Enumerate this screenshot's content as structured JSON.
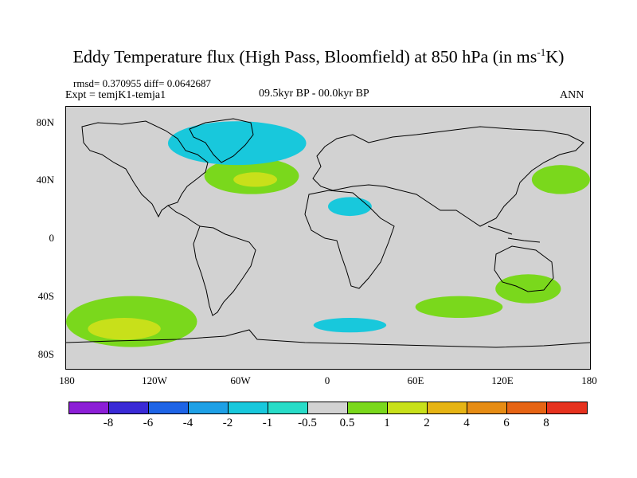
{
  "title": {
    "text_before": "Eddy Temperature flux (High Pass, Bloomfield) at 850 hPa (in ms",
    "sup": "-1",
    "text_after": "K)"
  },
  "header": {
    "stats": "rmsd= 0.370955 diff= 0.0642687",
    "expt": "Expt = temjK1-temja1",
    "period": "09.5kyr BP - 00.0kyr BP",
    "season": "ANN"
  },
  "axes": {
    "y_labels": [
      "80N",
      "40N",
      "0",
      "40S",
      "80S"
    ],
    "x_labels": [
      "180",
      "120W",
      "60W",
      "0",
      "60E",
      "120E",
      "180"
    ]
  },
  "colorbar": {
    "colors": [
      "#8c1ed6",
      "#3a2ad6",
      "#1e64e6",
      "#1ea0e6",
      "#18c8dc",
      "#28dcc8",
      "#d2d2d2",
      "#7ad81c",
      "#c8e01a",
      "#e6b414",
      "#e68c14",
      "#e66414",
      "#e6321e"
    ],
    "labels": [
      "-8",
      "-6",
      "-4",
      "-2",
      "-1",
      "-0.5",
      "0.5",
      "1",
      "2",
      "4",
      "6",
      "8"
    ]
  },
  "chart_data": {
    "type": "map",
    "projection": "cylindrical equidistant",
    "lon_range": [
      -180,
      180
    ],
    "lat_range": [
      -90,
      90
    ],
    "background_color": "#d2d2d2",
    "levels": [
      -8,
      -6,
      -4,
      -2,
      -1,
      -0.5,
      0.5,
      1,
      2,
      4,
      6,
      8
    ],
    "regions": [
      {
        "name": "north-atlantic-positive",
        "level": 1,
        "color": "#7ad81c",
        "lon": [
          -85,
          -20
        ],
        "lat": [
          30,
          55
        ]
      },
      {
        "name": "north-atlantic-core",
        "level": 2,
        "color": "#c8e01a",
        "lon": [
          -65,
          -35
        ],
        "lat": [
          35,
          45
        ]
      },
      {
        "name": "greenland-arctic-negative",
        "level": -1,
        "color": "#18c8dc",
        "lon": [
          -110,
          -15
        ],
        "lat": [
          50,
          80
        ]
      },
      {
        "name": "north-pacific-positive",
        "level": 1,
        "color": "#7ad81c",
        "lon": [
          140,
          180
        ],
        "lat": [
          30,
          50
        ]
      },
      {
        "name": "north-africa-negative",
        "level": -1,
        "color": "#18c8dc",
        "lon": [
          0,
          30
        ],
        "lat": [
          15,
          28
        ]
      },
      {
        "name": "south-pacific-positive",
        "level": 1,
        "color": "#7ad81c",
        "lon": [
          -180,
          -90
        ],
        "lat": [
          -75,
          -40
        ]
      },
      {
        "name": "south-pacific-core",
        "level": 2,
        "color": "#c8e01a",
        "lon": [
          -165,
          -115
        ],
        "lat": [
          -70,
          -55
        ]
      },
      {
        "name": "southern-ocean-negative",
        "level": -1,
        "color": "#18c8dc",
        "lon": [
          -10,
          40
        ],
        "lat": [
          -65,
          -55
        ]
      },
      {
        "name": "south-indian-positive",
        "level": 1,
        "color": "#7ad81c",
        "lon": [
          60,
          120
        ],
        "lat": [
          -55,
          -40
        ]
      },
      {
        "name": "australia-positive",
        "level": 1,
        "color": "#7ad81c",
        "lon": [
          115,
          160
        ],
        "lat": [
          -45,
          -25
        ]
      }
    ]
  }
}
